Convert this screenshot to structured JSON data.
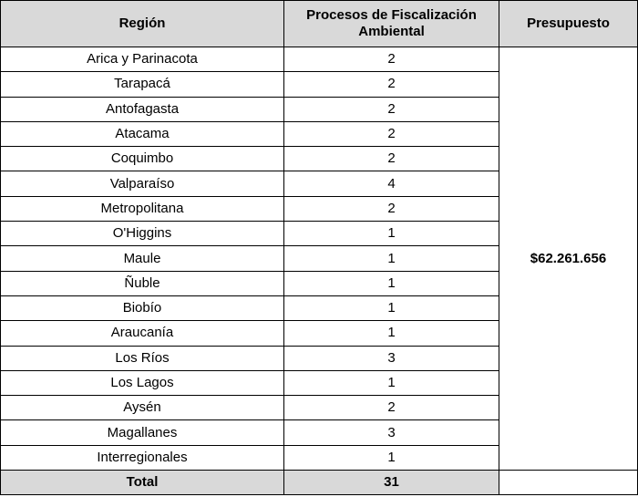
{
  "table": {
    "headers": {
      "region": "Región",
      "processes": "Procesos de Fiscalización Ambiental",
      "budget": "Presupuesto"
    },
    "rows": [
      {
        "region": "Arica y Parinacota",
        "processes": "2"
      },
      {
        "region": "Tarapacá",
        "processes": "2"
      },
      {
        "region": "Antofagasta",
        "processes": "2"
      },
      {
        "region": "Atacama",
        "processes": "2"
      },
      {
        "region": "Coquimbo",
        "processes": "2"
      },
      {
        "region": "Valparaíso",
        "processes": "4"
      },
      {
        "region": "Metropolitana",
        "processes": "2"
      },
      {
        "region": "O'Higgins",
        "processes": "1"
      },
      {
        "region": "Maule",
        "processes": "1"
      },
      {
        "region": "Ñuble",
        "processes": "1"
      },
      {
        "region": "Biobío",
        "processes": "1"
      },
      {
        "region": "Araucanía",
        "processes": "1"
      },
      {
        "region": "Los Ríos",
        "processes": "3"
      },
      {
        "region": "Los Lagos",
        "processes": "1"
      },
      {
        "region": "Aysén",
        "processes": "2"
      },
      {
        "region": "Magallanes",
        "processes": "3"
      },
      {
        "region": "Interregionales",
        "processes": "1"
      }
    ],
    "budget_value": "$62.261.656",
    "total": {
      "label": "Total",
      "processes": "31"
    }
  },
  "colors": {
    "header_bg": "#d9d9d9",
    "border": "#000000"
  }
}
